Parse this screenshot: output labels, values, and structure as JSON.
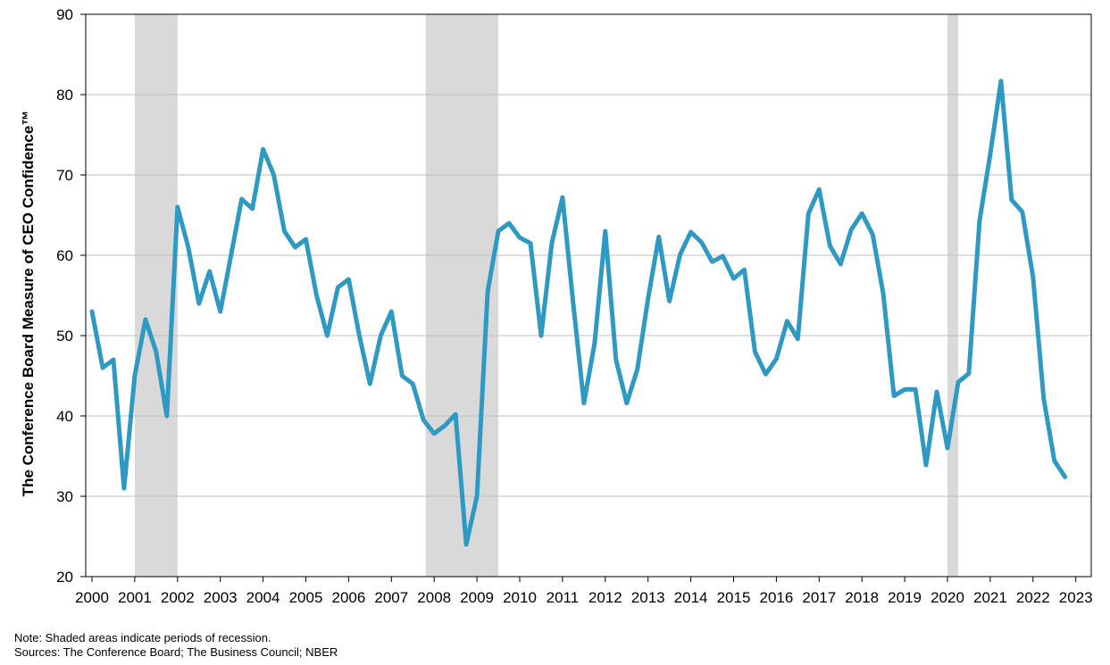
{
  "chart_data": {
    "type": "line",
    "title": "",
    "ylabel": "The Conference Board Measure of CEO Confidence™",
    "xlabel": "",
    "ylim": [
      20,
      90
    ],
    "yticks": [
      20,
      30,
      40,
      50,
      60,
      70,
      80,
      90
    ],
    "xlim": [
      2000,
      2023
    ],
    "xticks": [
      2000,
      2001,
      2002,
      2003,
      2004,
      2005,
      2006,
      2007,
      2008,
      2009,
      2010,
      2011,
      2012,
      2013,
      2014,
      2015,
      2016,
      2017,
      2018,
      2019,
      2020,
      2021,
      2022,
      2023
    ],
    "grid": true,
    "colors": {
      "line": "#2E9AC4",
      "recession": "#D9D9D9",
      "grid": "#BFBFBF"
    },
    "recessions": [
      {
        "start": 2001.0,
        "end": 2002.0
      },
      {
        "start": 2007.8,
        "end": 2009.5
      },
      {
        "start": 2020.0,
        "end": 2020.25
      }
    ],
    "series": [
      {
        "points": [
          [
            2000.0,
            53
          ],
          [
            2000.25,
            46
          ],
          [
            2000.5,
            47
          ],
          [
            2000.75,
            31
          ],
          [
            2001.0,
            45
          ],
          [
            2001.25,
            52
          ],
          [
            2001.5,
            48
          ],
          [
            2001.75,
            40
          ],
          [
            2002.0,
            66
          ],
          [
            2002.25,
            61
          ],
          [
            2002.5,
            54
          ],
          [
            2002.75,
            58
          ],
          [
            2003.0,
            53
          ],
          [
            2003.25,
            60
          ],
          [
            2003.5,
            67
          ],
          [
            2003.75,
            65.8
          ],
          [
            2004.0,
            73.2
          ],
          [
            2004.25,
            70
          ],
          [
            2004.5,
            63
          ],
          [
            2004.75,
            61
          ],
          [
            2005.0,
            62
          ],
          [
            2005.25,
            55
          ],
          [
            2005.5,
            50
          ],
          [
            2005.75,
            56
          ],
          [
            2006.0,
            57
          ],
          [
            2006.25,
            50
          ],
          [
            2006.5,
            44
          ],
          [
            2006.75,
            50
          ],
          [
            2007.0,
            53
          ],
          [
            2007.25,
            45
          ],
          [
            2007.5,
            44
          ],
          [
            2007.75,
            39.5
          ],
          [
            2008.0,
            37.8
          ],
          [
            2008.25,
            38.8
          ],
          [
            2008.5,
            40.2
          ],
          [
            2008.75,
            24
          ],
          [
            2009.0,
            30
          ],
          [
            2009.25,
            55.5
          ],
          [
            2009.5,
            63
          ],
          [
            2009.75,
            64
          ],
          [
            2010.0,
            62.2
          ],
          [
            2010.25,
            61.5
          ],
          [
            2010.5,
            50
          ],
          [
            2010.75,
            61.5
          ],
          [
            2011.0,
            67.2
          ],
          [
            2011.25,
            54
          ],
          [
            2011.5,
            41.6
          ],
          [
            2011.75,
            49
          ],
          [
            2012.0,
            63
          ],
          [
            2012.25,
            47
          ],
          [
            2012.5,
            41.6
          ],
          [
            2012.75,
            45.8
          ],
          [
            2013.0,
            54.6
          ],
          [
            2013.25,
            62.3
          ],
          [
            2013.5,
            54.3
          ],
          [
            2013.75,
            60.1
          ],
          [
            2014.0,
            62.9
          ],
          [
            2014.25,
            61.6
          ],
          [
            2014.5,
            59.2
          ],
          [
            2014.75,
            59.9
          ],
          [
            2015.0,
            57.1
          ],
          [
            2015.25,
            58.2
          ],
          [
            2015.5,
            48
          ],
          [
            2015.75,
            45.2
          ],
          [
            2016.0,
            47.1
          ],
          [
            2016.25,
            51.8
          ],
          [
            2016.5,
            49.6
          ],
          [
            2016.75,
            65.2
          ],
          [
            2017.0,
            68.2
          ],
          [
            2017.25,
            61.2
          ],
          [
            2017.5,
            58.9
          ],
          [
            2017.75,
            63.2
          ],
          [
            2018.0,
            65.2
          ],
          [
            2018.25,
            62.6
          ],
          [
            2018.5,
            55.2
          ],
          [
            2018.75,
            42.5
          ],
          [
            2019.0,
            43.3
          ],
          [
            2019.25,
            43.3
          ],
          [
            2019.5,
            33.9
          ],
          [
            2019.75,
            43
          ],
          [
            2020.0,
            36
          ],
          [
            2020.25,
            44.2
          ],
          [
            2020.5,
            45.3
          ],
          [
            2020.75,
            64.3
          ],
          [
            2021.0,
            72.6
          ],
          [
            2021.25,
            81.7
          ],
          [
            2021.5,
            66.9
          ],
          [
            2021.75,
            65.4
          ],
          [
            2022.0,
            57.3
          ],
          [
            2022.25,
            42.1
          ],
          [
            2022.5,
            34.4
          ],
          [
            2022.75,
            32.4
          ]
        ]
      }
    ]
  },
  "notes": {
    "note": "Note: Shaded areas indicate periods of  recession.",
    "sources": "Sources: The  Conference Board; The Business Council; NBER"
  }
}
